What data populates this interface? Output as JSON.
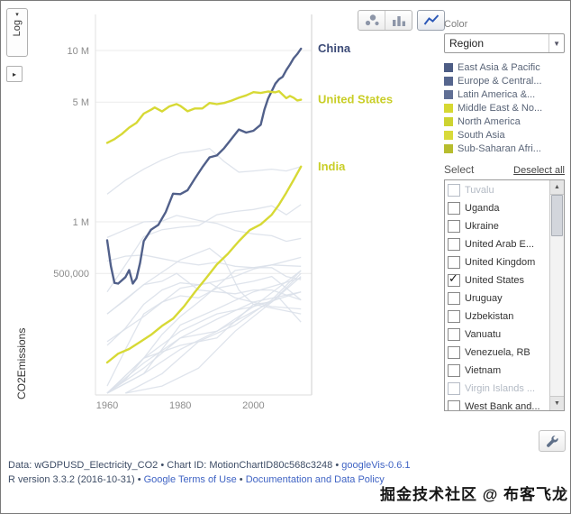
{
  "toolbar": {
    "log_label": "Log",
    "selected_chart_type": "line-chart"
  },
  "icons": {
    "log_dropdown_arrow": "▾",
    "axis_expand_arrow": "▸",
    "dropdown_arrow": "▼",
    "scroll_up": "▲",
    "scroll_down": "▼",
    "checkmark": "✓"
  },
  "chart_data": {
    "type": "line",
    "title": "",
    "xlabel": "",
    "ylabel": "CO2Emissions",
    "y_scale": "log",
    "grid": true,
    "xlim": [
      1957,
      2016
    ],
    "ylim": [
      100000,
      15000000
    ],
    "x_ticks": [
      1960,
      1980,
      2000
    ],
    "y_ticks": [
      {
        "value": 10000000,
        "label": "10 M"
      },
      {
        "value": 5000000,
        "label": "5 M"
      },
      {
        "value": 1000000,
        "label": "1 M"
      },
      {
        "value": 500000,
        "label": "500,000"
      }
    ],
    "background_color": "#dce1ea",
    "series": [
      {
        "name": "China",
        "color": "#51608a",
        "label_color": "#3c4b77",
        "points": [
          [
            1960,
            780000
          ],
          [
            1961,
            552000
          ],
          [
            1962,
            440000
          ],
          [
            1963,
            436000
          ],
          [
            1964,
            455000
          ],
          [
            1965,
            476000
          ],
          [
            1966,
            523000
          ],
          [
            1967,
            436000
          ],
          [
            1968,
            468000
          ],
          [
            1969,
            575000
          ],
          [
            1970,
            772000
          ],
          [
            1972,
            900000
          ],
          [
            1974,
            960000
          ],
          [
            1976,
            1140000
          ],
          [
            1978,
            1460000
          ],
          [
            1980,
            1450000
          ],
          [
            1982,
            1530000
          ],
          [
            1984,
            1790000
          ],
          [
            1986,
            2080000
          ],
          [
            1988,
            2380000
          ],
          [
            1990,
            2440000
          ],
          [
            1992,
            2690000
          ],
          [
            1994,
            3050000
          ],
          [
            1996,
            3460000
          ],
          [
            1998,
            3320000
          ],
          [
            2000,
            3400000
          ],
          [
            2002,
            3690000
          ],
          [
            2003,
            4520000
          ],
          [
            2004,
            5230000
          ],
          [
            2005,
            5790000
          ],
          [
            2006,
            6410000
          ],
          [
            2007,
            6790000
          ],
          [
            2008,
            7030000
          ],
          [
            2009,
            7690000
          ],
          [
            2010,
            8290000
          ],
          [
            2011,
            9020000
          ],
          [
            2012,
            9540000
          ],
          [
            2013,
            10250000
          ]
        ]
      },
      {
        "name": "United States",
        "color": "#d7d935",
        "label_color": "#c9ce27",
        "points": [
          [
            1960,
            2890000
          ],
          [
            1962,
            3040000
          ],
          [
            1964,
            3250000
          ],
          [
            1966,
            3550000
          ],
          [
            1968,
            3780000
          ],
          [
            1970,
            4280000
          ],
          [
            1972,
            4510000
          ],
          [
            1973,
            4650000
          ],
          [
            1975,
            4410000
          ],
          [
            1977,
            4720000
          ],
          [
            1979,
            4870000
          ],
          [
            1980,
            4750000
          ],
          [
            1982,
            4420000
          ],
          [
            1984,
            4590000
          ],
          [
            1986,
            4590000
          ],
          [
            1988,
            4940000
          ],
          [
            1990,
            4860000
          ],
          [
            1992,
            4940000
          ],
          [
            1994,
            5100000
          ],
          [
            1996,
            5300000
          ],
          [
            1998,
            5470000
          ],
          [
            2000,
            5710000
          ],
          [
            2002,
            5650000
          ],
          [
            2004,
            5760000
          ],
          [
            2006,
            5700000
          ],
          [
            2007,
            5790000
          ],
          [
            2009,
            5270000
          ],
          [
            2010,
            5430000
          ],
          [
            2011,
            5300000
          ],
          [
            2012,
            5110000
          ],
          [
            2013,
            5160000
          ]
        ]
      },
      {
        "name": "India",
        "color": "#d7d935",
        "label_color": "#c9ce27",
        "points": [
          [
            1960,
            151000
          ],
          [
            1963,
            170000
          ],
          [
            1966,
            181000
          ],
          [
            1969,
            199000
          ],
          [
            1972,
            219000
          ],
          [
            1975,
            247000
          ],
          [
            1978,
            272000
          ],
          [
            1981,
            321000
          ],
          [
            1984,
            389000
          ],
          [
            1987,
            467000
          ],
          [
            1990,
            564000
          ],
          [
            1993,
            650000
          ],
          [
            1996,
            771000
          ],
          [
            1999,
            895000
          ],
          [
            2002,
            967000
          ],
          [
            2005,
            1100000
          ],
          [
            2007,
            1260000
          ],
          [
            2009,
            1480000
          ],
          [
            2011,
            1760000
          ],
          [
            2013,
            2100000
          ]
        ]
      }
    ],
    "background_series": [
      [
        [
          1960,
          390000
        ],
        [
          1965,
          560000
        ],
        [
          1970,
          820000
        ],
        [
          1975,
          900000
        ],
        [
          1980,
          930000
        ],
        [
          1985,
          950000
        ],
        [
          1990,
          1100000
        ],
        [
          1995,
          1150000
        ],
        [
          2000,
          1180000
        ],
        [
          2005,
          1240000
        ],
        [
          2009,
          1100000
        ],
        [
          2013,
          1260000
        ]
      ],
      [
        [
          1960,
          1450000
        ],
        [
          1965,
          1750000
        ],
        [
          1970,
          2030000
        ],
        [
          1975,
          2300000
        ],
        [
          1980,
          2520000
        ],
        [
          1985,
          2600000
        ],
        [
          1988,
          2680000
        ],
        [
          1992,
          2250000
        ],
        [
          1996,
          1950000
        ],
        [
          2000,
          1980000
        ],
        [
          2005,
          2030000
        ],
        [
          2009,
          1980000
        ],
        [
          2013,
          2100000
        ]
      ],
      [
        [
          1960,
          810000
        ],
        [
          1965,
          900000
        ],
        [
          1970,
          1000000
        ],
        [
          1975,
          1010000
        ],
        [
          1979,
          1090000
        ],
        [
          1985,
          1020000
        ],
        [
          1990,
          980000
        ],
        [
          1995,
          890000
        ],
        [
          2000,
          850000
        ],
        [
          2005,
          830000
        ],
        [
          2009,
          770000
        ],
        [
          2013,
          800000
        ]
      ],
      [
        [
          1960,
          590000
        ],
        [
          1965,
          630000
        ],
        [
          1970,
          640000
        ],
        [
          1975,
          610000
        ],
        [
          1980,
          580000
        ],
        [
          1985,
          560000
        ],
        [
          1990,
          580000
        ],
        [
          1995,
          550000
        ],
        [
          2000,
          540000
        ],
        [
          2005,
          540000
        ],
        [
          2009,
          480000
        ],
        [
          2013,
          460000
        ]
      ],
      [
        [
          1960,
          100000
        ],
        [
          1965,
          120000
        ],
        [
          1970,
          160000
        ],
        [
          1975,
          220000
        ],
        [
          1980,
          280000
        ],
        [
          1985,
          340000
        ],
        [
          1990,
          420000
        ],
        [
          1995,
          520000
        ],
        [
          2000,
          540000
        ],
        [
          2005,
          560000
        ],
        [
          2013,
          620000
        ]
      ],
      [
        [
          1960,
          190000
        ],
        [
          1965,
          240000
        ],
        [
          1970,
          330000
        ],
        [
          1975,
          400000
        ],
        [
          1980,
          440000
        ],
        [
          1985,
          430000
        ],
        [
          1990,
          450000
        ],
        [
          1995,
          480000
        ],
        [
          2000,
          530000
        ],
        [
          2005,
          560000
        ],
        [
          2013,
          550000
        ]
      ],
      [
        [
          1960,
          290000
        ],
        [
          1965,
          350000
        ],
        [
          1970,
          430000
        ],
        [
          1975,
          450000
        ],
        [
          1979,
          500000
        ],
        [
          1985,
          400000
        ],
        [
          1990,
          390000
        ],
        [
          1995,
          380000
        ],
        [
          2000,
          400000
        ],
        [
          2005,
          400000
        ],
        [
          2013,
          350000
        ]
      ],
      [
        [
          1960,
          110000
        ],
        [
          1965,
          180000
        ],
        [
          1970,
          290000
        ],
        [
          1975,
          340000
        ],
        [
          1980,
          370000
        ],
        [
          1985,
          360000
        ],
        [
          1990,
          410000
        ],
        [
          1995,
          430000
        ],
        [
          2000,
          450000
        ],
        [
          2005,
          480000
        ],
        [
          2013,
          350000
        ]
      ],
      [
        [
          1960,
          100000
        ],
        [
          1970,
          160000
        ],
        [
          1980,
          190000
        ],
        [
          1990,
          210000
        ],
        [
          2000,
          330000
        ],
        [
          2005,
          340000
        ],
        [
          2013,
          500000
        ]
      ],
      [
        [
          1960,
          100000
        ],
        [
          1970,
          130000
        ],
        [
          1980,
          250000
        ],
        [
          1990,
          310000
        ],
        [
          2000,
          390000
        ],
        [
          2013,
          470000
        ]
      ],
      [
        [
          1960,
          100000
        ],
        [
          1970,
          150000
        ],
        [
          1980,
          210000
        ],
        [
          1990,
          270000
        ],
        [
          2000,
          340000
        ],
        [
          2013,
          390000
        ]
      ],
      [
        [
          1965,
          100000
        ],
        [
          1975,
          110000
        ],
        [
          1985,
          140000
        ],
        [
          1995,
          230000
        ],
        [
          2005,
          340000
        ],
        [
          2013,
          480000
        ]
      ],
      [
        [
          1960,
          100000
        ],
        [
          1970,
          160000
        ],
        [
          1980,
          230000
        ],
        [
          1990,
          290000
        ],
        [
          2000,
          320000
        ],
        [
          2013,
          390000
        ]
      ],
      [
        [
          1960,
          100000
        ],
        [
          1970,
          130000
        ],
        [
          1980,
          180000
        ],
        [
          1990,
          230000
        ],
        [
          2000,
          320000
        ],
        [
          2013,
          520000
        ]
      ],
      [
        [
          1965,
          100000
        ],
        [
          1975,
          130000
        ],
        [
          1985,
          200000
        ],
        [
          1995,
          250000
        ],
        [
          2005,
          350000
        ],
        [
          2013,
          520000
        ]
      ],
      [
        [
          1960,
          290000
        ],
        [
          1970,
          430000
        ],
        [
          1980,
          600000
        ],
        [
          1988,
          700000
        ],
        [
          1992,
          600000
        ],
        [
          1996,
          400000
        ],
        [
          2000,
          330000
        ],
        [
          2013,
          290000
        ]
      ],
      [
        [
          1960,
          200000
        ],
        [
          1970,
          280000
        ],
        [
          1980,
          410000
        ],
        [
          1988,
          440000
        ],
        [
          1995,
          360000
        ],
        [
          2005,
          320000
        ],
        [
          2013,
          310000
        ]
      ],
      [
        [
          1960,
          100000
        ],
        [
          1970,
          140000
        ],
        [
          1980,
          210000
        ],
        [
          1990,
          230000
        ],
        [
          2000,
          300000
        ],
        [
          2007,
          360000
        ],
        [
          2013,
          260000
        ]
      ]
    ]
  },
  "panel": {
    "color_label": "Color",
    "color_dropdown_value": "Region",
    "legend": [
      {
        "label": "East Asia & Pacific",
        "color": "#4d5d85"
      },
      {
        "label": "Europe & Central...",
        "color": "#56668e"
      },
      {
        "label": "Latin America &...",
        "color": "#606f95"
      },
      {
        "label": "Middle East & No...",
        "color": "#d6d832"
      },
      {
        "label": "North America",
        "color": "#cdd331"
      },
      {
        "label": "South Asia",
        "color": "#d8da3a"
      },
      {
        "label": "Sub-Saharan Afri...",
        "color": "#b7bd2e"
      }
    ],
    "select_label": "Select",
    "deselect_all_label": "Deselect all",
    "countries": [
      {
        "label": "Tuvalu",
        "checked": false,
        "muted": true
      },
      {
        "label": "Uganda",
        "checked": false,
        "muted": false
      },
      {
        "label": "Ukraine",
        "checked": false,
        "muted": false
      },
      {
        "label": "United Arab E...",
        "checked": false,
        "muted": false
      },
      {
        "label": "United Kingdom",
        "checked": false,
        "muted": false
      },
      {
        "label": "United States",
        "checked": true,
        "muted": false
      },
      {
        "label": "Uruguay",
        "checked": false,
        "muted": false
      },
      {
        "label": "Uzbekistan",
        "checked": false,
        "muted": false
      },
      {
        "label": "Vanuatu",
        "checked": false,
        "muted": false
      },
      {
        "label": "Venezuela, RB",
        "checked": false,
        "muted": false
      },
      {
        "label": "Vietnam",
        "checked": false,
        "muted": false
      },
      {
        "label": "Virgin Islands ...",
        "checked": false,
        "muted": true
      },
      {
        "label": "West Bank and...",
        "checked": false,
        "muted": false
      }
    ]
  },
  "footer": {
    "sep": " • ",
    "data_text": "Data: wGDPUSD_Electricity_CO2",
    "chart_id_text": "Chart ID: MotionChartID80c568c3248",
    "googlevis_link": "googleVis-0.6.1",
    "r_version_text": "R version 3.3.2 (2016-10-31)",
    "terms_link": "Google Terms of Use",
    "docs_link": "Documentation and Data Policy"
  },
  "watermark": {
    "text": "掘金技术社区 @ 布客飞龙"
  }
}
